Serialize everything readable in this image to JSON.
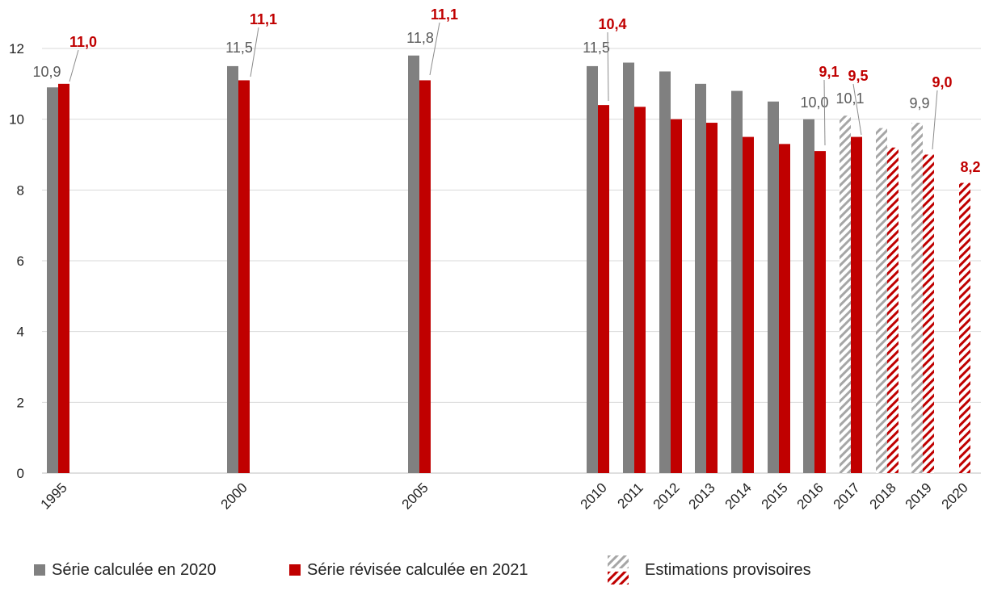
{
  "chart_data": {
    "type": "bar",
    "categories": [
      "1995",
      "2000",
      "2005",
      "2010",
      "2011",
      "2012",
      "2013",
      "2014",
      "2015",
      "2016",
      "2017",
      "2018",
      "2019",
      "2020"
    ],
    "series": [
      {
        "name": "Série calculée en 2020",
        "color": "#808080",
        "values": [
          10.9,
          11.5,
          11.8,
          11.5,
          11.6,
          11.35,
          11.0,
          10.8,
          10.5,
          10.0,
          10.1,
          9.75,
          9.9,
          null
        ],
        "labels": [
          "10,9",
          "11,5",
          "11,8",
          "11,5",
          "",
          "",
          "",
          "",
          "",
          "10,0",
          "10,1",
          "",
          "9,9",
          ""
        ],
        "provisional": [
          false,
          false,
          false,
          false,
          false,
          false,
          false,
          false,
          false,
          false,
          true,
          true,
          true,
          false
        ]
      },
      {
        "name": "Série révisée calculée en 2021",
        "color": "#c00000",
        "values": [
          11.0,
          11.1,
          11.1,
          10.4,
          10.35,
          10.0,
          9.9,
          9.5,
          9.3,
          9.1,
          9.5,
          9.2,
          9.0,
          8.2
        ],
        "labels": [
          "11,0",
          "11,1",
          "11,1",
          "10,4",
          "",
          "",
          "",
          "",
          "",
          "9,1",
          "9,5",
          "",
          "9,0",
          "8,2"
        ],
        "provisional": [
          false,
          false,
          false,
          false,
          false,
          false,
          false,
          false,
          false,
          false,
          false,
          true,
          true,
          true
        ]
      }
    ],
    "ylim": [
      0,
      12
    ],
    "yticks": [
      "0",
      "2",
      "4",
      "6",
      "8",
      "10",
      "12"
    ],
    "grid": true,
    "legend_position": "bottom",
    "legend": {
      "grey": "Série calculée en 2020",
      "red": "Série révisée calculée en 2021",
      "hatch": "Estimations provisoires"
    }
  }
}
